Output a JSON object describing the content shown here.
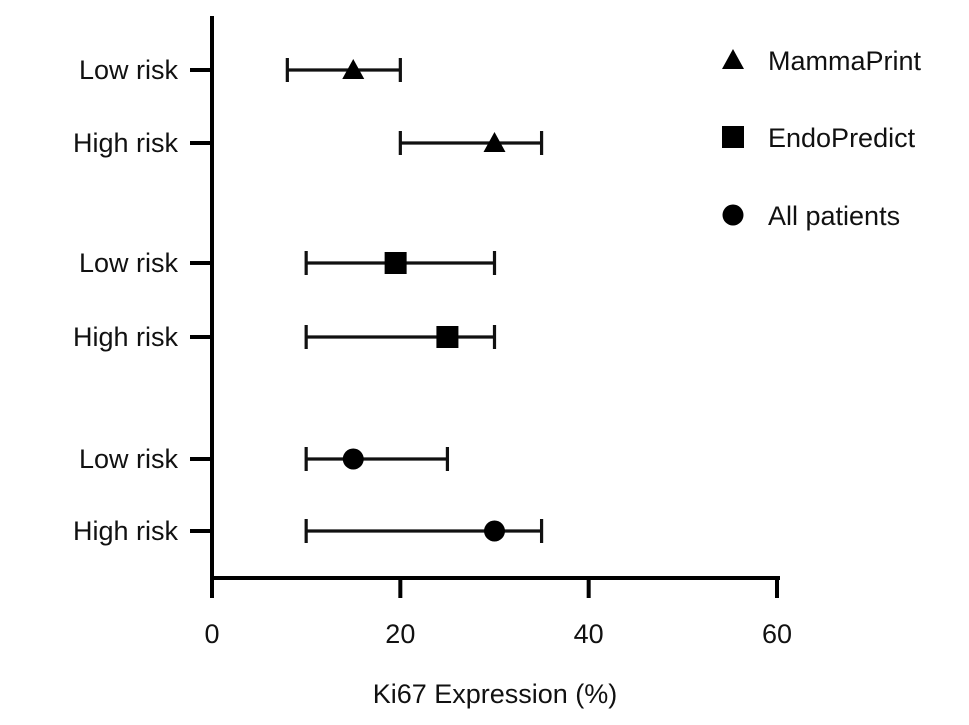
{
  "chart_data": {
    "type": "scatter",
    "orientation": "horizontal",
    "title": "",
    "xlabel": "Ki67 Expression (%)",
    "ylabel": "",
    "xlim": [
      0,
      60
    ],
    "xticks": [
      0,
      20,
      40,
      60
    ],
    "grid": false,
    "legend_position": "top-right",
    "categories": [
      "Low risk",
      "High risk",
      "Low risk",
      "High risk",
      "Low risk",
      "High risk"
    ],
    "series": [
      {
        "name": "MammaPrint",
        "marker": "triangle",
        "color": "#000000",
        "points": [
          {
            "category": "Low risk",
            "median": 15,
            "low": 8,
            "high": 20
          },
          {
            "category": "High risk",
            "median": 30,
            "low": 20,
            "high": 35
          }
        ]
      },
      {
        "name": "EndoPredict",
        "marker": "square",
        "color": "#000000",
        "points": [
          {
            "category": "Low risk",
            "median": 19.5,
            "low": 10,
            "high": 30
          },
          {
            "category": "High risk",
            "median": 25,
            "low": 10,
            "high": 30
          }
        ]
      },
      {
        "name": "All patients",
        "marker": "circle",
        "color": "#000000",
        "points": [
          {
            "category": "Low risk",
            "median": 15,
            "low": 10,
            "high": 25
          },
          {
            "category": "High risk",
            "median": 30,
            "low": 10,
            "high": 35
          }
        ]
      }
    ]
  }
}
